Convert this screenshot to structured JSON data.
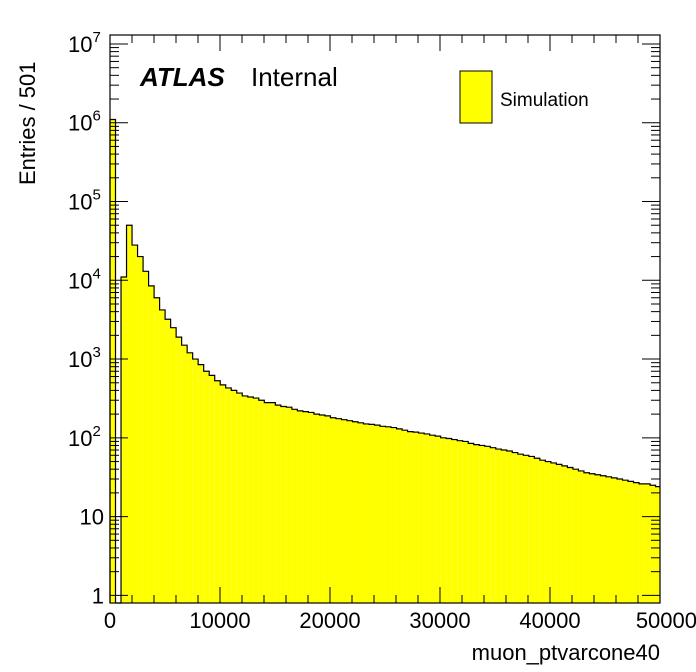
{
  "chart_data": {
    "type": "bar",
    "style": "histogram-step-filled",
    "xlabel": "muon_ptvarcone40",
    "ylabel": "Entries / 501",
    "xlim": [
      0,
      50000
    ],
    "ylim": [
      0.8,
      13000000
    ],
    "yscale": "log",
    "bin_width": 501,
    "x_ticks": [
      "0",
      "10000",
      "20000",
      "30000",
      "40000",
      "50000"
    ],
    "y_ticks": [
      {
        "base": "1",
        "exp": ""
      },
      {
        "base": "10",
        "exp": ""
      },
      {
        "base": "10",
        "exp": "2"
      },
      {
        "base": "10",
        "exp": "3"
      },
      {
        "base": "10",
        "exp": "4"
      },
      {
        "base": "10",
        "exp": "5"
      },
      {
        "base": "10",
        "exp": "6"
      },
      {
        "base": "10",
        "exp": "7"
      }
    ],
    "atlas_label": "ATLAS",
    "atlas_status": "Internal",
    "legend_position": "top-right",
    "series": [
      {
        "name": "Simulation",
        "color": "#ffff00",
        "edge_color": "#000000",
        "values": [
          1100000,
          0,
          11000,
          50000,
          28000,
          20000,
          13000,
          8500,
          6000,
          4200,
          3200,
          2500,
          1900,
          1500,
          1200,
          1000,
          850,
          700,
          620,
          530,
          470,
          430,
          400,
          370,
          340,
          330,
          320,
          300,
          280,
          280,
          260,
          250,
          245,
          230,
          220,
          215,
          210,
          200,
          195,
          190,
          180,
          175,
          170,
          165,
          160,
          155,
          150,
          148,
          145,
          140,
          138,
          135,
          130,
          125,
          120,
          118,
          115,
          112,
          108,
          105,
          100,
          98,
          95,
          92,
          90,
          85,
          82,
          80,
          78,
          75,
          72,
          70,
          68,
          65,
          62,
          60,
          58,
          55,
          52,
          50,
          48,
          46,
          44,
          42,
          40,
          38,
          36,
          35,
          34,
          33,
          32,
          31,
          30,
          29,
          28,
          27,
          26,
          26,
          25,
          24
        ]
      }
    ]
  }
}
